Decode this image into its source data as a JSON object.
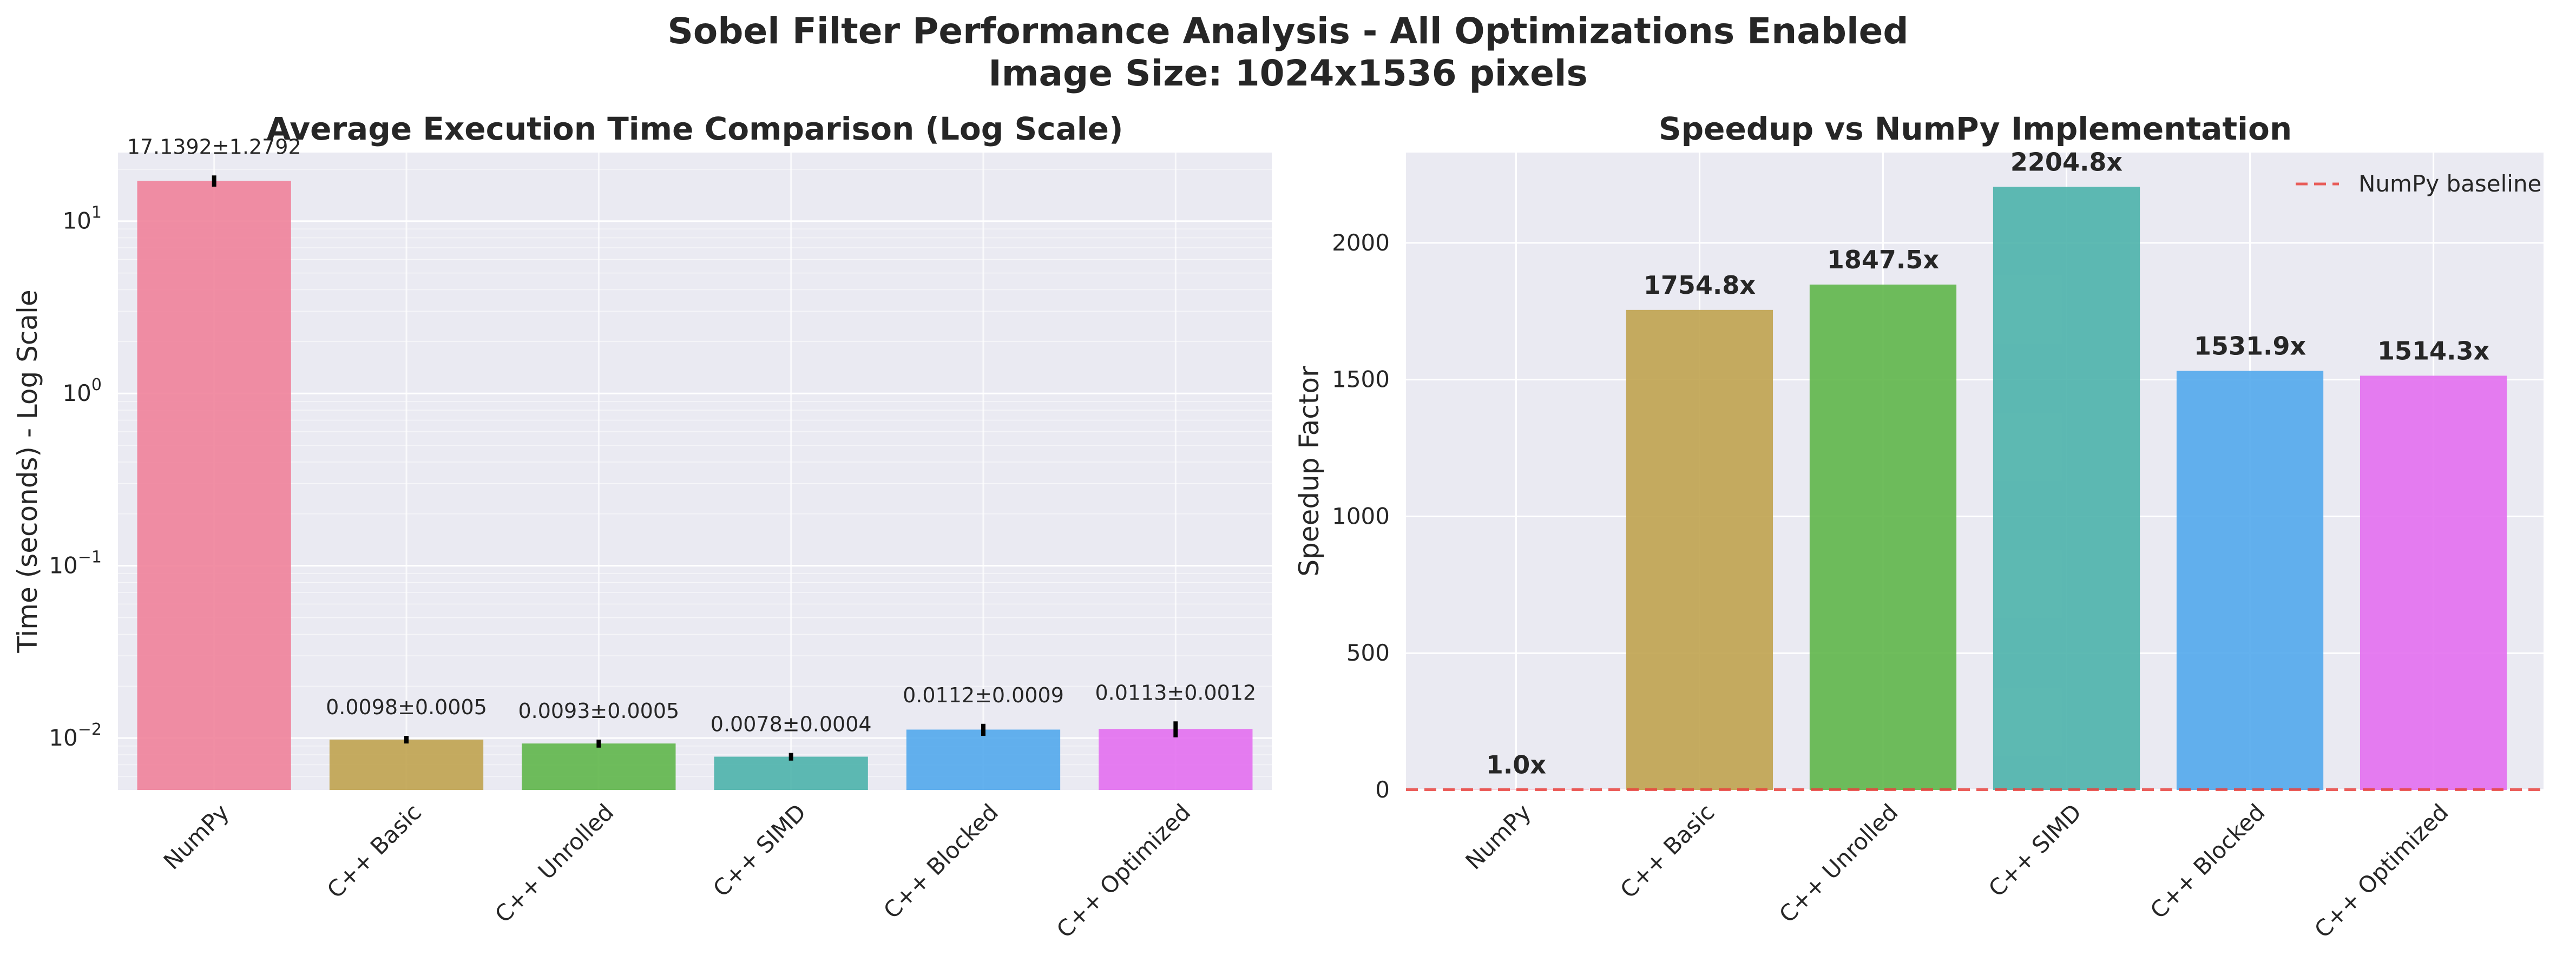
{
  "figure": {
    "suptitle_line1": "Sobel Filter Performance Analysis - All Optimizations Enabled",
    "suptitle_line2": "Image Size: 1024x1536 pixels",
    "background": "#ffffff",
    "axes_background": "#eaeaf2",
    "grid_color": "#ffffff"
  },
  "chart_data": [
    {
      "type": "bar",
      "title": "Average Execution Time Comparison (Log Scale)",
      "xlabel": "",
      "ylabel": "Time (seconds) - Log Scale",
      "yscale": "log",
      "ylim": [
        0.005,
        25
      ],
      "yticks": [
        0.01,
        0.1,
        1,
        10
      ],
      "ytick_labels": [
        {
          "base": "10",
          "exp": "−2"
        },
        {
          "base": "10",
          "exp": "−1"
        },
        {
          "base": "10",
          "exp": "0"
        },
        {
          "base": "10",
          "exp": "1"
        }
      ],
      "grid": true,
      "categories": [
        "NumPy",
        "C++ Basic",
        "C++ Unrolled",
        "C++ SIMD",
        "C++ Blocked",
        "C++ Optimized"
      ],
      "values": [
        17.1392,
        0.0098,
        0.0093,
        0.0078,
        0.0112,
        0.0113
      ],
      "errors": [
        1.2792,
        0.0005,
        0.0005,
        0.0004,
        0.0009,
        0.0012
      ],
      "labels": [
        "17.1392±1.2792",
        "0.0098±0.0005",
        "0.0093±0.0005",
        "0.0078±0.0004",
        "0.0112±0.0009",
        "0.0113±0.0012"
      ],
      "colors": [
        "#f0829a",
        "#c0a34f",
        "#5fb64a",
        "#4db3ab",
        "#52a8ec",
        "#e36ff0"
      ]
    },
    {
      "type": "bar",
      "title": "Speedup vs NumPy Implementation",
      "xlabel": "",
      "ylabel": "Speedup Factor",
      "ylim": [
        0,
        2330
      ],
      "yticks": [
        0,
        500,
        1000,
        1500,
        2000
      ],
      "grid": true,
      "categories": [
        "NumPy",
        "C++ Basic",
        "C++ Unrolled",
        "C++ SIMD",
        "C++ Blocked",
        "C++ Optimized"
      ],
      "values": [
        1.0,
        1754.8,
        1847.5,
        2204.8,
        1531.9,
        1514.3
      ],
      "labels": [
        "1.0x",
        "1754.8x",
        "1847.5x",
        "2204.8x",
        "1531.9x",
        "1514.3x"
      ],
      "colors": [
        "#f0829a",
        "#c0a34f",
        "#5fb64a",
        "#4db3ab",
        "#52a8ec",
        "#e36ff0"
      ],
      "baseline": {
        "value": 1,
        "label": "NumPy baseline",
        "color": "#e8433e",
        "style": "dashed"
      },
      "legend_position": "top-right"
    }
  ]
}
